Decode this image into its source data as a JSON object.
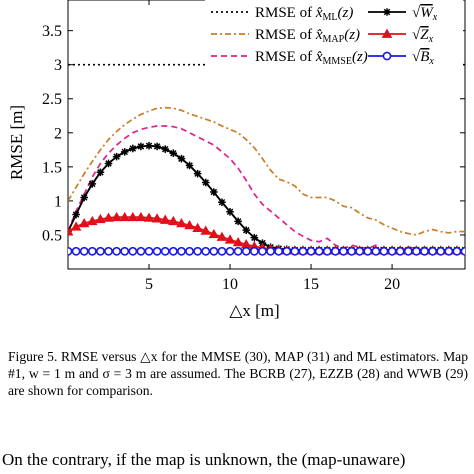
{
  "chart_data": {
    "type": "line",
    "xlabel": "△x [m]",
    "ylabel": "RMSE [m]",
    "xlim": [
      0,
      24.5
    ],
    "ylim": [
      0,
      3.95
    ],
    "xticks": [
      5,
      10,
      15,
      20
    ],
    "yticks": [
      0.5,
      1,
      1.5,
      2,
      2.5,
      3,
      3.5
    ],
    "xtick_labels": [
      "5",
      "10",
      "15",
      "20"
    ],
    "ytick_labels": [
      "0.5",
      "1",
      "1.5",
      "2",
      "2.5",
      "3",
      "3.5"
    ],
    "legend_position": "top (two columns)",
    "series": [
      {
        "name": "RMSE of x̂ML(z)",
        "legend_text": "RMSE of",
        "legend_sym": "x̂",
        "legend_sub": "ML",
        "legend_arg": "(z)",
        "color": "#000000",
        "dash": "2,3",
        "marker": "none",
        "x": [
          0,
          24.5
        ],
        "y": [
          3.0,
          3.0
        ]
      },
      {
        "name": "RMSE of x̂MAP(z)",
        "legend_text": "RMSE of",
        "legend_sym": "x̂",
        "legend_sub": "MAP",
        "legend_arg": "(z)",
        "color": "#c87d28",
        "dash": "6,3,2,3",
        "marker": "none",
        "x": [
          0,
          0.5,
          1,
          1.5,
          2,
          2.5,
          3,
          3.5,
          4,
          4.5,
          5,
          5.5,
          6,
          6.5,
          7,
          7.5,
          8,
          8.5,
          9,
          9.5,
          10,
          10.5,
          11,
          11.5,
          12,
          12.5,
          13,
          13.5,
          14,
          14.5,
          15,
          15.5,
          16,
          16.5,
          17,
          17.5,
          18,
          18.5,
          19,
          19.5,
          20,
          20.5,
          21,
          21.5,
          22,
          22.5,
          23,
          23.5,
          24,
          24.5
        ],
        "y": [
          1.0,
          1.2,
          1.4,
          1.58,
          1.75,
          1.9,
          2.02,
          2.12,
          2.2,
          2.27,
          2.32,
          2.36,
          2.37,
          2.36,
          2.33,
          2.28,
          2.24,
          2.2,
          2.16,
          2.1,
          2.05,
          2.0,
          1.9,
          1.78,
          1.62,
          1.45,
          1.32,
          1.28,
          1.22,
          1.1,
          1.05,
          1.05,
          1.05,
          1.0,
          0.92,
          0.9,
          0.82,
          0.75,
          0.72,
          0.65,
          0.6,
          0.55,
          0.52,
          0.5,
          0.55,
          0.58,
          0.55,
          0.53,
          0.55,
          0.55
        ]
      },
      {
        "name": "RMSE of x̂MMSE(z)",
        "legend_text": "RMSE of",
        "legend_sym": "x̂",
        "legend_sub": "MMSE",
        "legend_arg": "(z)",
        "color": "#e0208c",
        "dash": "6,4",
        "marker": "none",
        "x": [
          0,
          0.5,
          1,
          1.5,
          2,
          2.5,
          3,
          3.5,
          4,
          4.5,
          5,
          5.5,
          6,
          6.5,
          7,
          7.5,
          8,
          8.5,
          9,
          9.5,
          10,
          10.5,
          11,
          11.5,
          12,
          12.5,
          13,
          13.5,
          14,
          14.5,
          15,
          15.5,
          16,
          16.5,
          17,
          17.5,
          18,
          18.5,
          19,
          19.5,
          20,
          20.5,
          21,
          21.5,
          22,
          22.5,
          23,
          23.5,
          24,
          24.5
        ],
        "y": [
          0.55,
          0.85,
          1.1,
          1.35,
          1.55,
          1.7,
          1.82,
          1.92,
          2.0,
          2.05,
          2.08,
          2.1,
          2.1,
          2.09,
          2.06,
          2.0,
          1.94,
          1.88,
          1.82,
          1.72,
          1.62,
          1.48,
          1.3,
          1.1,
          0.95,
          0.85,
          0.75,
          0.65,
          0.55,
          0.48,
          0.42,
          0.4,
          0.45,
          0.35,
          0.3,
          0.35,
          0.32,
          0.3,
          0.35,
          0.28,
          0.3,
          0.28,
          0.32,
          0.3,
          0.28,
          0.3,
          0.27,
          0.28,
          0.28,
          0.28
        ]
      },
      {
        "name": "√Wx",
        "legend_sym": "W",
        "legend_sub": "x",
        "color": "#000000",
        "dash": "",
        "marker": "star",
        "x": [
          0,
          0.5,
          1,
          1.5,
          2,
          2.5,
          3,
          3.5,
          4,
          4.5,
          5,
          5.5,
          6,
          6.5,
          7,
          7.5,
          8,
          8.5,
          9,
          9.5,
          10,
          10.5,
          11,
          11.5,
          12,
          12.5,
          13,
          13.5,
          14,
          14.5,
          15,
          15.5,
          16,
          16.5,
          17,
          17.5,
          18,
          18.5,
          19,
          19.5,
          20,
          20.5,
          21,
          21.5,
          22,
          22.5,
          23,
          23.5,
          24,
          24.5
        ],
        "y": [
          0.55,
          0.8,
          1.05,
          1.25,
          1.42,
          1.55,
          1.65,
          1.72,
          1.77,
          1.8,
          1.81,
          1.8,
          1.76,
          1.7,
          1.62,
          1.52,
          1.4,
          1.27,
          1.13,
          0.98,
          0.84,
          0.7,
          0.57,
          0.46,
          0.38,
          0.32,
          0.3,
          0.29,
          0.28,
          0.28,
          0.28,
          0.28,
          0.28,
          0.28,
          0.28,
          0.28,
          0.28,
          0.28,
          0.28,
          0.28,
          0.28,
          0.28,
          0.28,
          0.28,
          0.28,
          0.28,
          0.28,
          0.28,
          0.28,
          0.28
        ]
      },
      {
        "name": "√Zx",
        "legend_sym": "Z",
        "legend_sub": "x",
        "color": "#e0101a",
        "dash": "",
        "marker": "triangle",
        "x": [
          0,
          0.5,
          1,
          1.5,
          2,
          2.5,
          3,
          3.5,
          4,
          4.5,
          5,
          5.5,
          6,
          6.5,
          7,
          7.5,
          8,
          8.5,
          9,
          9.5,
          10,
          10.5,
          11,
          11.5,
          12,
          12.5,
          13,
          13.5,
          14,
          14.5,
          15,
          15.5,
          16,
          16.5,
          17,
          17.5,
          18,
          18.5,
          19,
          19.5,
          20,
          20.5,
          21,
          21.5,
          22,
          22.5,
          23,
          23.5,
          24,
          24.5
        ],
        "y": [
          0.55,
          0.62,
          0.67,
          0.7,
          0.73,
          0.75,
          0.76,
          0.76,
          0.76,
          0.76,
          0.75,
          0.74,
          0.72,
          0.7,
          0.67,
          0.64,
          0.6,
          0.56,
          0.51,
          0.47,
          0.43,
          0.39,
          0.36,
          0.33,
          0.31,
          0.29,
          0.28,
          0.27,
          0.27,
          0.27,
          0.27,
          0.27,
          0.27,
          0.27,
          0.27,
          0.27,
          0.27,
          0.27,
          0.27,
          0.27,
          0.27,
          0.27,
          0.27,
          0.27,
          0.27,
          0.27,
          0.27,
          0.27,
          0.27,
          0.27
        ]
      },
      {
        "name": "√Bx",
        "legend_sym": "B",
        "legend_sub": "x",
        "color": "#1a1ae6",
        "dash": "",
        "marker": "circle",
        "x": [
          0,
          0.5,
          1,
          1.5,
          2,
          2.5,
          3,
          3.5,
          4,
          4.5,
          5,
          5.5,
          6,
          6.5,
          7,
          7.5,
          8,
          8.5,
          9,
          9.5,
          10,
          10.5,
          11,
          11.5,
          12,
          12.5,
          13,
          13.5,
          14,
          14.5,
          15,
          15.5,
          16,
          16.5,
          17,
          17.5,
          18,
          18.5,
          19,
          19.5,
          20,
          20.5,
          21,
          21.5,
          22,
          22.5,
          23,
          23.5,
          24,
          24.5
        ],
        "y": [
          0.26,
          0.26,
          0.26,
          0.26,
          0.26,
          0.26,
          0.26,
          0.26,
          0.26,
          0.26,
          0.26,
          0.26,
          0.26,
          0.26,
          0.26,
          0.26,
          0.26,
          0.26,
          0.26,
          0.26,
          0.26,
          0.26,
          0.26,
          0.26,
          0.26,
          0.26,
          0.26,
          0.26,
          0.26,
          0.26,
          0.26,
          0.26,
          0.26,
          0.26,
          0.26,
          0.26,
          0.26,
          0.26,
          0.26,
          0.26,
          0.26,
          0.26,
          0.26,
          0.26,
          0.26,
          0.26,
          0.26,
          0.26,
          0.26,
          0.26
        ]
      }
    ]
  },
  "caption": "Figure 5.    RMSE versus △x for the MMSE (30), MAP (31) and ML estimators. Map #1, w = 1 m and σ = 3 m are assumed. The BCRB (27), EZZB (28) and WWB (29) are shown for comparison.",
  "body_text": "On the contrary, if the map is unknown, the (map-unaware)"
}
